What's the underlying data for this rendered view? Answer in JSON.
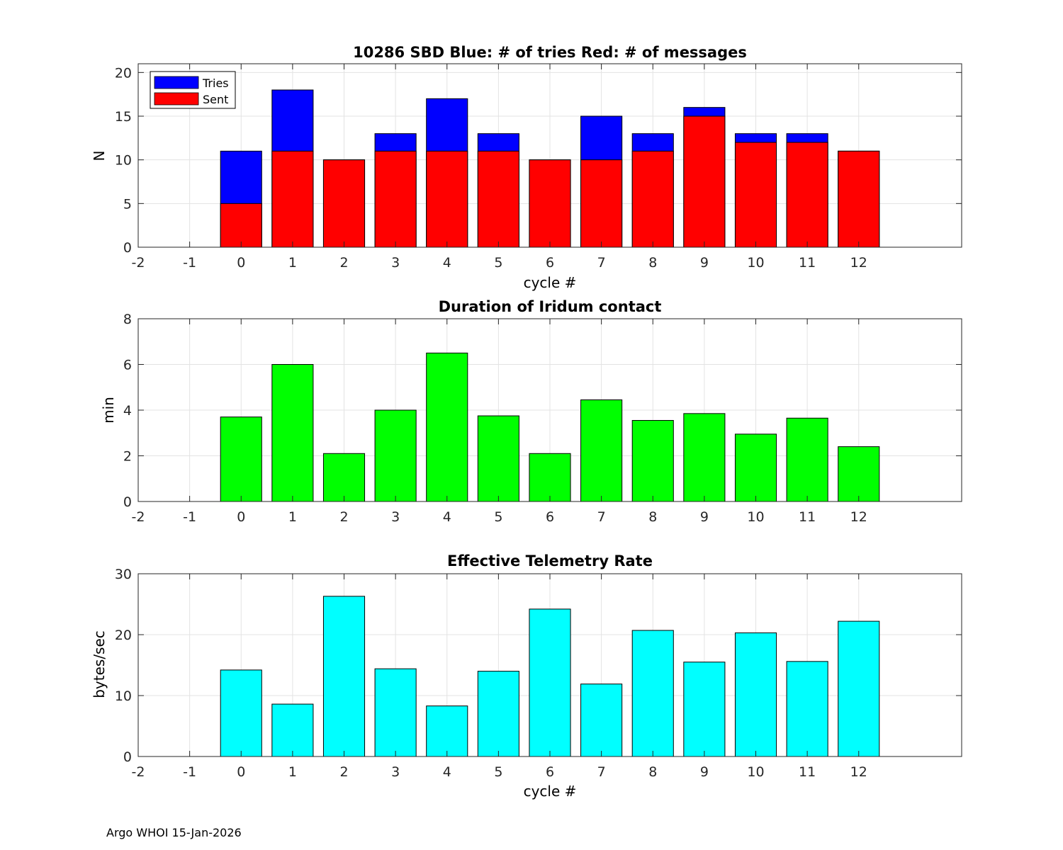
{
  "footer": "Argo WHOI 15-Jan-2026",
  "chart_data": [
    {
      "type": "bar",
      "title": "10286 SBD  Blue: # of tries   Red: # of messages",
      "xlabel": "cycle #",
      "ylabel": "N",
      "xlim": [
        -2,
        14
      ],
      "ylim": [
        0,
        21
      ],
      "xticks": [
        "-2",
        "-1",
        "0",
        "1",
        "2",
        "3",
        "4",
        "5",
        "6",
        "7",
        "8",
        "9",
        "10",
        "11",
        "12"
      ],
      "yticks": [
        "0",
        "5",
        "10",
        "15",
        "20"
      ],
      "grid": true,
      "legend": "top-left",
      "categories": [
        0,
        1,
        2,
        3,
        4,
        5,
        6,
        7,
        8,
        9,
        10,
        11,
        12
      ],
      "series": [
        {
          "name": "Tries",
          "color": "#0000ff",
          "values": [
            11,
            18,
            10,
            13,
            17,
            13,
            10,
            15,
            13,
            16,
            13,
            13,
            11
          ]
        },
        {
          "name": "Sent",
          "color": "#ff0000",
          "values": [
            5,
            11,
            10,
            11,
            11,
            11,
            10,
            10,
            11,
            15,
            12,
            12,
            11
          ]
        }
      ]
    },
    {
      "type": "bar",
      "title": "Duration of Iridum contact",
      "xlabel": "",
      "ylabel": "min",
      "xlim": [
        -2,
        14
      ],
      "ylim": [
        0,
        8
      ],
      "xticks": [
        "-2",
        "-1",
        "0",
        "1",
        "2",
        "3",
        "4",
        "5",
        "6",
        "7",
        "8",
        "9",
        "10",
        "11",
        "12"
      ],
      "yticks": [
        "0",
        "2",
        "4",
        "6",
        "8"
      ],
      "grid": true,
      "categories": [
        0,
        1,
        2,
        3,
        4,
        5,
        6,
        7,
        8,
        9,
        10,
        11,
        12
      ],
      "series": [
        {
          "name": "Duration",
          "color": "#00ff00",
          "values": [
            3.7,
            6.0,
            2.1,
            4.0,
            6.5,
            3.75,
            2.1,
            4.45,
            3.55,
            3.85,
            2.95,
            3.65,
            2.4
          ]
        }
      ]
    },
    {
      "type": "bar",
      "title": "Effective Telemetry Rate",
      "xlabel": "cycle #",
      "ylabel": "bytes/sec",
      "xlim": [
        -2,
        14
      ],
      "ylim": [
        0,
        30
      ],
      "xticks": [
        "-2",
        "-1",
        "0",
        "1",
        "2",
        "3",
        "4",
        "5",
        "6",
        "7",
        "8",
        "9",
        "10",
        "11",
        "12"
      ],
      "yticks": [
        "0",
        "10",
        "20",
        "30"
      ],
      "grid": true,
      "categories": [
        0,
        1,
        2,
        3,
        4,
        5,
        6,
        7,
        8,
        9,
        10,
        11,
        12
      ],
      "series": [
        {
          "name": "Rate",
          "color": "#00ffff",
          "values": [
            14.2,
            8.6,
            26.3,
            14.4,
            8.3,
            14.0,
            24.2,
            11.9,
            20.7,
            15.5,
            20.3,
            15.6,
            22.2
          ]
        }
      ]
    }
  ]
}
